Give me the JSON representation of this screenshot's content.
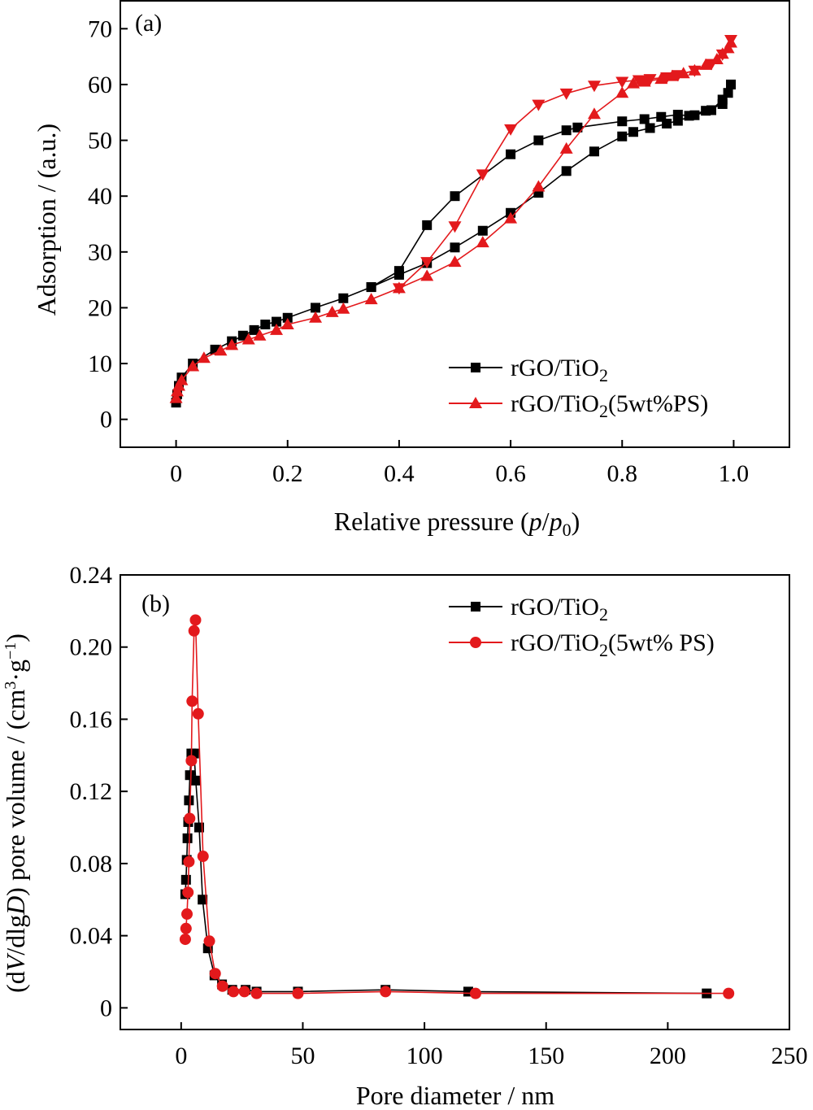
{
  "chart_data": [
    {
      "type": "line",
      "panel_label": "(a)",
      "xlabel": "Relative pressure (p/p0)",
      "ylabel": "Adsorption / (a.u.)",
      "xlim": [
        -0.1,
        1.1
      ],
      "ylim": [
        -5,
        75
      ],
      "xticks": [
        0,
        0.2,
        0.4,
        0.6,
        0.8,
        1.0
      ],
      "xtick_labels": [
        "0",
        "0.2",
        "0.4",
        "0.6",
        "0.8",
        "1.0"
      ],
      "yticks": [
        0,
        10,
        20,
        30,
        40,
        50,
        60,
        70
      ],
      "ytick_labels": [
        "0",
        "10",
        "20",
        "30",
        "40",
        "50",
        "60",
        "70"
      ],
      "grid": false,
      "legend_position": "bottom-right",
      "series": [
        {
          "name": "rGO/TiO2",
          "color": "#000000",
          "marker": "square",
          "adsorption": [
            [
              0.0,
              3
            ],
            [
              0.002,
              4.5
            ],
            [
              0.005,
              6
            ],
            [
              0.01,
              7.5
            ],
            [
              0.03,
              10
            ],
            [
              0.07,
              12.5
            ],
            [
              0.1,
              14
            ],
            [
              0.12,
              15
            ],
            [
              0.14,
              16
            ],
            [
              0.16,
              17
            ],
            [
              0.18,
              17.5
            ],
            [
              0.2,
              18.2
            ],
            [
              0.25,
              20
            ],
            [
              0.3,
              21.7
            ],
            [
              0.35,
              23.7
            ],
            [
              0.4,
              25.9
            ],
            [
              0.45,
              28
            ],
            [
              0.5,
              30.8
            ],
            [
              0.55,
              33.8
            ],
            [
              0.6,
              37
            ],
            [
              0.65,
              40.6
            ],
            [
              0.7,
              44.5
            ],
            [
              0.75,
              48
            ],
            [
              0.8,
              50.7
            ],
            [
              0.82,
              51.5
            ],
            [
              0.85,
              52.2
            ],
            [
              0.88,
              53
            ],
            [
              0.9,
              53.5
            ],
            [
              0.93,
              54.5
            ],
            [
              0.96,
              55.4
            ],
            [
              0.98,
              57.3
            ],
            [
              0.99,
              58.5
            ],
            [
              0.995,
              60
            ]
          ],
          "desorption": [
            [
              0.995,
              60
            ],
            [
              0.98,
              56.5
            ],
            [
              0.95,
              55.3
            ],
            [
              0.92,
              54.4
            ],
            [
              0.9,
              54.6
            ],
            [
              0.87,
              54.2
            ],
            [
              0.84,
              53.8
            ],
            [
              0.8,
              53.4
            ],
            [
              0.72,
              52.3
            ],
            [
              0.7,
              51.8
            ],
            [
              0.65,
              50
            ],
            [
              0.6,
              47.5
            ],
            [
              0.5,
              40
            ],
            [
              0.45,
              34.8
            ],
            [
              0.4,
              26.6
            ],
            [
              0.35,
              23.7
            ]
          ]
        },
        {
          "name": "rGO/TiO2(5wt%PS)",
          "color": "#e3191c",
          "marker": "triangle",
          "adsorption": [
            [
              0.0,
              3.8
            ],
            [
              0.002,
              5
            ],
            [
              0.005,
              6
            ],
            [
              0.01,
              7
            ],
            [
              0.03,
              9.5
            ],
            [
              0.05,
              11
            ],
            [
              0.08,
              12.3
            ],
            [
              0.1,
              13.3
            ],
            [
              0.13,
              14.3
            ],
            [
              0.15,
              15
            ],
            [
              0.18,
              16
            ],
            [
              0.2,
              17
            ],
            [
              0.25,
              18.2
            ],
            [
              0.28,
              19.2
            ],
            [
              0.3,
              19.8
            ],
            [
              0.35,
              21.5
            ],
            [
              0.4,
              23.5
            ],
            [
              0.45,
              25.7
            ],
            [
              0.5,
              28.2
            ],
            [
              0.55,
              31.7
            ],
            [
              0.6,
              36
            ],
            [
              0.65,
              41.7
            ],
            [
              0.7,
              48.5
            ],
            [
              0.75,
              54.7
            ],
            [
              0.8,
              58.5
            ],
            [
              0.82,
              60.2
            ],
            [
              0.84,
              60.5
            ],
            [
              0.87,
              61
            ],
            [
              0.89,
              61.5
            ],
            [
              0.91,
              62
            ],
            [
              0.93,
              62.5
            ],
            [
              0.95,
              63.5
            ],
            [
              0.97,
              64.5
            ],
            [
              0.98,
              65.5
            ],
            [
              0.99,
              66.5
            ],
            [
              0.995,
              67.5
            ]
          ],
          "desorption": [
            [
              0.995,
              68
            ],
            [
              0.98,
              65.4
            ],
            [
              0.96,
              63.7
            ],
            [
              0.93,
              62.5
            ],
            [
              0.9,
              61.7
            ],
            [
              0.88,
              61.3
            ],
            [
              0.85,
              61
            ],
            [
              0.83,
              60.8
            ],
            [
              0.8,
              60.5
            ],
            [
              0.75,
              59.8
            ],
            [
              0.7,
              58.4
            ],
            [
              0.65,
              56.4
            ],
            [
              0.6,
              52
            ],
            [
              0.55,
              43.9
            ],
            [
              0.5,
              34.6
            ],
            [
              0.45,
              28.2
            ],
            [
              0.4,
              23.5
            ]
          ]
        }
      ]
    },
    {
      "type": "line",
      "panel_label": "(b)",
      "xlabel": "Pore diameter / nm",
      "ylabel": "(dV/dlgD) pore volume / (cm3·g-1)",
      "xlim": [
        -25,
        250
      ],
      "ylim": [
        -0.012,
        0.24
      ],
      "xticks": [
        0,
        50,
        100,
        150,
        200,
        250
      ],
      "xtick_labels": [
        "0",
        "50",
        "100",
        "150",
        "200",
        "250"
      ],
      "yticks": [
        0,
        0.04,
        0.08,
        0.12,
        0.16,
        0.2,
        0.24
      ],
      "ytick_labels": [
        "0",
        "0.04",
        "0.08",
        "0.12",
        "0.16",
        "0.20",
        "0.24"
      ],
      "grid": false,
      "legend_position": "top-right",
      "series": [
        {
          "name": "rGO/TiO2",
          "color": "#000000",
          "marker": "square",
          "points": [
            [
              1.7,
              0.063
            ],
            [
              2.0,
              0.071
            ],
            [
              2.3,
              0.082
            ],
            [
              2.6,
              0.094
            ],
            [
              2.9,
              0.103
            ],
            [
              3.2,
              0.115
            ],
            [
              3.6,
              0.129
            ],
            [
              4.2,
              0.141
            ],
            [
              5.3,
              0.141
            ],
            [
              6.0,
              0.126
            ],
            [
              7.4,
              0.1
            ],
            [
              8.8,
              0.06
            ],
            [
              11.0,
              0.033
            ],
            [
              13.7,
              0.018
            ],
            [
              16.8,
              0.013
            ],
            [
              21.0,
              0.01
            ],
            [
              26.5,
              0.01
            ],
            [
              31.0,
              0.009
            ],
            [
              48.0,
              0.009
            ],
            [
              84.0,
              0.01
            ],
            [
              118.0,
              0.009
            ],
            [
              216.0,
              0.008
            ]
          ]
        },
        {
          "name": "rGO/TiO2(5wt% PS)",
          "color": "#e3191c",
          "marker": "circle",
          "points": [
            [
              1.7,
              0.038
            ],
            [
              2.0,
              0.044
            ],
            [
              2.4,
              0.052
            ],
            [
              2.8,
              0.064
            ],
            [
              3.2,
              0.081
            ],
            [
              3.5,
              0.105
            ],
            [
              4.2,
              0.137
            ],
            [
              4.5,
              0.17
            ],
            [
              5.3,
              0.209
            ],
            [
              5.9,
              0.215
            ],
            [
              7.0,
              0.163
            ],
            [
              9.0,
              0.084
            ],
            [
              11.6,
              0.037
            ],
            [
              14.0,
              0.019
            ],
            [
              17.0,
              0.012
            ],
            [
              21.5,
              0.009
            ],
            [
              26.0,
              0.009
            ],
            [
              31.0,
              0.008
            ],
            [
              48.0,
              0.008
            ],
            [
              84.0,
              0.009
            ],
            [
              121.0,
              0.008
            ],
            [
              225.0,
              0.008
            ]
          ]
        }
      ]
    }
  ]
}
